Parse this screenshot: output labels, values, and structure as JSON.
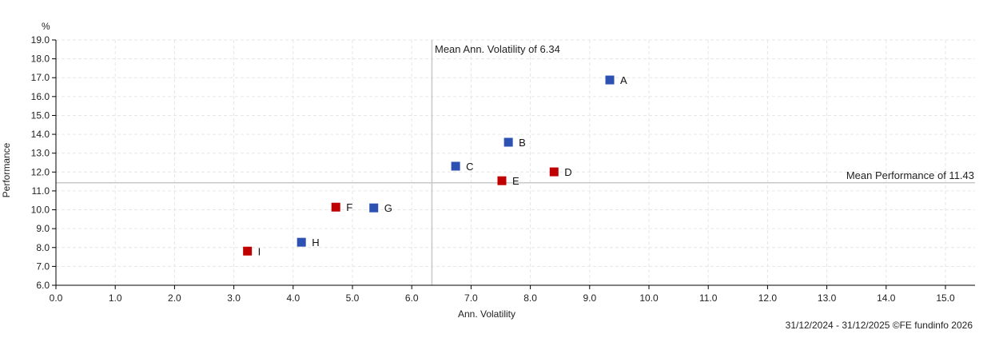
{
  "chart_data": {
    "type": "scatter",
    "title": "",
    "xlabel": "Ann. Volatility",
    "ylabel": "Performance",
    "yunit": "%",
    "xlim": [
      0,
      15.5
    ],
    "ylim": [
      6,
      19
    ],
    "xticks": [
      "0.0",
      "1.0",
      "2.0",
      "3.0",
      "4.0",
      "5.0",
      "6.0",
      "7.0",
      "8.0",
      "9.0",
      "10.0",
      "11.0",
      "12.0",
      "13.0",
      "14.0",
      "15.0"
    ],
    "yticks": [
      "6.0",
      "7.0",
      "8.0",
      "9.0",
      "10.0",
      "11.0",
      "12.0",
      "13.0",
      "14.0",
      "15.0",
      "16.0",
      "17.0",
      "18.0",
      "19.0"
    ],
    "grid": true,
    "points": [
      {
        "label": "A",
        "x": 9.34,
        "y": 16.88,
        "color": "#2d51b3"
      },
      {
        "label": "B",
        "x": 7.63,
        "y": 13.58,
        "color": "#2d51b3"
      },
      {
        "label": "C",
        "x": 6.74,
        "y": 12.31,
        "color": "#2d51b3"
      },
      {
        "label": "D",
        "x": 8.4,
        "y": 12.01,
        "color": "#c00000"
      },
      {
        "label": "E",
        "x": 7.52,
        "y": 11.54,
        "color": "#c00000"
      },
      {
        "label": "F",
        "x": 4.72,
        "y": 10.14,
        "color": "#c00000"
      },
      {
        "label": "G",
        "x": 5.36,
        "y": 10.1,
        "color": "#2d51b3"
      },
      {
        "label": "H",
        "x": 4.14,
        "y": 8.28,
        "color": "#2d51b3"
      },
      {
        "label": "I",
        "x": 3.23,
        "y": 7.81,
        "color": "#c00000"
      }
    ],
    "mean_x": 6.34,
    "mean_y": 11.43,
    "mean_x_label": "Mean Ann. Volatility of 6.34",
    "mean_y_label": "Mean Performance of 11.43"
  },
  "footer": "31/12/2024 - 31/12/2025 ©FE fundinfo 2026"
}
